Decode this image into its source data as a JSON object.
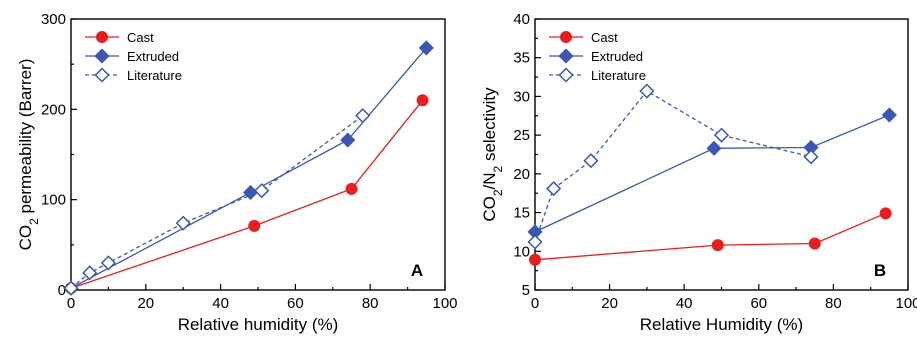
{
  "chart_data": [
    {
      "panel": "A",
      "type": "line",
      "panel_label": "A",
      "xlabel": "Relative humidity (%)",
      "ylabel_main": "CO",
      "ylabel_sub": "2",
      "ylabel_rest": " permeability (Barrer)",
      "xlim": [
        0,
        100
      ],
      "ylim": [
        0,
        300
      ],
      "xticks": [
        0,
        20,
        40,
        60,
        80,
        100
      ],
      "yticks": [
        0,
        100,
        200,
        300
      ],
      "legend_position": "top-left",
      "series": [
        {
          "name": "Cast",
          "marker": "circle",
          "color": "#ee1c1c",
          "dashed": false,
          "points": [
            [
              0,
              2
            ],
            [
              49,
              71
            ],
            [
              75,
              112
            ],
            [
              94,
              210
            ]
          ]
        },
        {
          "name": "Extruded",
          "marker": "diamond",
          "color": "#3a57b5",
          "dashed": false,
          "points": [
            [
              0,
              2
            ],
            [
              48,
              108
            ],
            [
              74,
              166
            ],
            [
              95,
              268
            ]
          ]
        },
        {
          "name": "Literature",
          "marker": "diamond-open",
          "color": "#3a57b5",
          "dashed": true,
          "points": [
            [
              0,
              2
            ],
            [
              5,
              19
            ],
            [
              10,
              30
            ],
            [
              30,
              74
            ],
            [
              51,
              110
            ],
            [
              78,
              193
            ]
          ]
        }
      ]
    },
    {
      "panel": "B",
      "type": "line",
      "panel_label": "B",
      "xlabel": "Relative Humidity (%)",
      "ylabel_main": "CO",
      "ylabel_sub": "2",
      "ylabel_mid": "/N",
      "ylabel_sub2": "2",
      "ylabel_rest": " selectivity",
      "xlim": [
        0,
        100
      ],
      "ylim": [
        5,
        40
      ],
      "xticks": [
        0,
        20,
        40,
        60,
        80,
        100
      ],
      "yticks": [
        5,
        10,
        15,
        20,
        25,
        30,
        35,
        40
      ],
      "legend_position": "top-left",
      "series": [
        {
          "name": "Cast",
          "marker": "circle",
          "color": "#ee1c1c",
          "dashed": false,
          "points": [
            [
              0,
              8.9
            ],
            [
              49,
              10.8
            ],
            [
              75,
              11.0
            ],
            [
              94,
              14.9
            ]
          ]
        },
        {
          "name": "Extruded",
          "marker": "diamond",
          "color": "#3a57b5",
          "dashed": false,
          "points": [
            [
              0,
              12.5
            ],
            [
              48,
              23.3
            ],
            [
              74,
              23.4
            ],
            [
              95,
              27.6
            ]
          ]
        },
        {
          "name": "Literature",
          "marker": "diamond-open",
          "color": "#3a57b5",
          "dashed": true,
          "points": [
            [
              0,
              11.2
            ],
            [
              5,
              18.1
            ],
            [
              15,
              21.7
            ],
            [
              30,
              30.7
            ],
            [
              50,
              25.0
            ],
            [
              74,
              22.2
            ]
          ]
        }
      ]
    }
  ]
}
